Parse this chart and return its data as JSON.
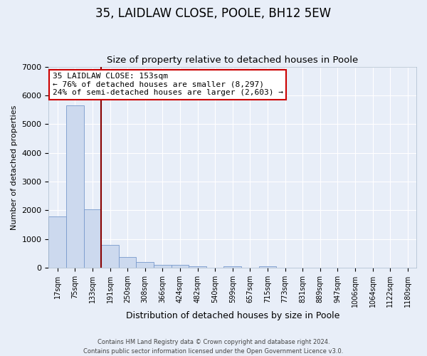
{
  "title": "35, LAIDLAW CLOSE, POOLE, BH12 5EW",
  "subtitle": "Size of property relative to detached houses in Poole",
  "bar_labels": [
    "17sqm",
    "75sqm",
    "133sqm",
    "191sqm",
    "250sqm",
    "308sqm",
    "366sqm",
    "424sqm",
    "482sqm",
    "540sqm",
    "599sqm",
    "657sqm",
    "715sqm",
    "773sqm",
    "831sqm",
    "889sqm",
    "947sqm",
    "1006sqm",
    "1064sqm",
    "1122sqm",
    "1180sqm"
  ],
  "bar_values": [
    1780,
    5650,
    2030,
    810,
    370,
    215,
    110,
    115,
    55,
    0,
    65,
    0,
    65,
    0,
    0,
    0,
    0,
    0,
    0,
    0,
    0
  ],
  "bar_color": "#ccd9ee",
  "bar_edge_color": "#7799cc",
  "ylim": [
    0,
    7000
  ],
  "yticks": [
    0,
    1000,
    2000,
    3000,
    4000,
    5000,
    6000,
    7000
  ],
  "ylabel": "Number of detached properties",
  "xlabel": "Distribution of detached houses by size in Poole",
  "vline_x_idx": 2,
  "vline_color": "#880000",
  "annotation_title": "35 LAIDLAW CLOSE: 153sqm",
  "annotation_line1": "← 76% of detached houses are smaller (8,297)",
  "annotation_line2": "24% of semi-detached houses are larger (2,603) →",
  "annotation_box_color": "#ffffff",
  "annotation_box_edge": "#cc0000",
  "footer_line1": "Contains HM Land Registry data © Crown copyright and database right 2024.",
  "footer_line2": "Contains public sector information licensed under the Open Government Licence v3.0.",
  "background_color": "#e8eef8",
  "plot_background": "#e8eef8",
  "grid_color": "#ffffff",
  "title_fontsize": 12,
  "subtitle_fontsize": 9.5
}
